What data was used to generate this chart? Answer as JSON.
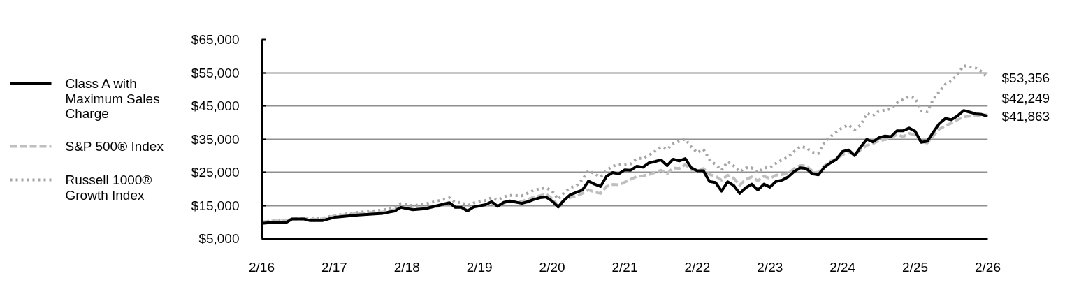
{
  "chart_data": {
    "type": "line",
    "x": [
      "2016-02",
      "2016-04",
      "2016-06",
      "2016-07",
      "2016-09",
      "2016-10",
      "2016-12",
      "2017-02",
      "2017-03",
      "2017-06",
      "2017-10",
      "2017-12",
      "2018-01",
      "2018-03",
      "2018-05",
      "2018-07",
      "2018-09",
      "2018-10",
      "2018-11",
      "2018-12",
      "2019-01",
      "2019-03",
      "2019-04",
      "2019-05",
      "2019-06",
      "2019-07",
      "2019-09",
      "2019-10",
      "2019-11",
      "2019-12",
      "2020-01",
      "2020-02",
      "2020-03",
      "2020-04",
      "2020-05",
      "2020-06",
      "2020-07",
      "2020-08",
      "2020-09",
      "2020-10",
      "2020-11",
      "2020-12",
      "2021-01",
      "2021-02",
      "2021-03",
      "2021-04",
      "2021-05",
      "2021-06",
      "2021-07",
      "2021-08",
      "2021-09",
      "2021-10",
      "2021-11",
      "2021-12",
      "2022-01",
      "2022-02",
      "2022-03",
      "2022-04",
      "2022-05",
      "2022-06",
      "2022-07",
      "2022-08",
      "2022-09",
      "2022-10",
      "2022-11",
      "2022-12",
      "2023-01",
      "2023-02",
      "2023-03",
      "2023-04",
      "2023-05",
      "2023-06",
      "2023-07",
      "2023-08",
      "2023-09",
      "2023-10",
      "2023-11",
      "2023-12",
      "2024-01",
      "2024-02",
      "2024-03",
      "2024-04",
      "2024-05",
      "2024-06",
      "2024-07",
      "2024-08",
      "2024-09",
      "2024-10",
      "2024-11",
      "2024-12",
      "2025-01",
      "2025-02",
      "2025-03",
      "2025-04",
      "2025-05",
      "2025-06",
      "2025-07",
      "2025-08",
      "2025-09",
      "2025-10",
      "2025-11",
      "2025-12",
      "2026-01",
      "2026-02"
    ],
    "series": [
      {
        "name": "Class A with Maximum Sales Charge",
        "color": "#000000",
        "line_style": "solid",
        "values": [
          9600,
          9900,
          9800,
          10900,
          10900,
          10400,
          10400,
          11400,
          11600,
          12100,
          12600,
          13300,
          14400,
          13700,
          14000,
          14900,
          15800,
          14400,
          14400,
          13300,
          14500,
          15200,
          16100,
          14700,
          15900,
          16300,
          15600,
          16100,
          16800,
          17300,
          17500,
          16300,
          14500,
          16600,
          18200,
          18900,
          19600,
          22300,
          21400,
          20700,
          23800,
          24900,
          24500,
          25700,
          25600,
          26800,
          26500,
          27800,
          28200,
          28700,
          27000,
          28900,
          28400,
          29100,
          26300,
          25400,
          25400,
          22200,
          21900,
          19300,
          22100,
          21000,
          18600,
          20300,
          21400,
          19600,
          21400,
          20500,
          22200,
          22600,
          23600,
          25200,
          26300,
          26100,
          24500,
          24200,
          26500,
          27800,
          28900,
          31200,
          31700,
          30000,
          32600,
          34900,
          34100,
          35400,
          35900,
          35700,
          37500,
          37500,
          38300,
          37300,
          34000,
          34300,
          37100,
          39700,
          41200,
          40800,
          42000,
          43600,
          43100,
          42600,
          42400,
          41863
        ],
        "value_labels": [
          null,
          null,
          null,
          null,
          null,
          null,
          null,
          null,
          null,
          null,
          null,
          null,
          null,
          null,
          null,
          null,
          null,
          null,
          null,
          null,
          null,
          null,
          null,
          null,
          null,
          null,
          null,
          null,
          null,
          null,
          null,
          null,
          null,
          null,
          null,
          null,
          null,
          null,
          null,
          null,
          null,
          null,
          null,
          null,
          null,
          null,
          null,
          null,
          null,
          null,
          null,
          null,
          null,
          null,
          null,
          null,
          null,
          null,
          null,
          null,
          null,
          null,
          null,
          null,
          null,
          null,
          null,
          null,
          null,
          null,
          null,
          null,
          null,
          null,
          null,
          null,
          null,
          null,
          null,
          null,
          null,
          null,
          null,
          null,
          null,
          null,
          null,
          null,
          null,
          null,
          null,
          null,
          null,
          null,
          null,
          null,
          null,
          null,
          null,
          null,
          null,
          null,
          null,
          "$41,863"
        ]
      },
      {
        "name": "S&P 500® Index",
        "color": "#bfbfbf",
        "line_style": "dashed",
        "values": [
          10000,
          10300,
          10400,
          10900,
          11000,
          10800,
          10900,
          11800,
          12000,
          12600,
          13000,
          13700,
          14500,
          13900,
          14100,
          14700,
          15400,
          14400,
          14600,
          13400,
          14400,
          15000,
          15600,
          14700,
          15700,
          16100,
          16200,
          16800,
          17500,
          17900,
          18400,
          17000,
          14900,
          16700,
          17400,
          17700,
          18600,
          19700,
          19000,
          18600,
          20700,
          21300,
          21200,
          22000,
          22900,
          23700,
          23900,
          24300,
          24900,
          25600,
          24500,
          26300,
          26100,
          27300,
          25800,
          25300,
          26100,
          24300,
          23800,
          22600,
          24100,
          23200,
          21100,
          22800,
          23600,
          22400,
          23800,
          23100,
          24100,
          24300,
          24600,
          26100,
          27000,
          26900,
          25300,
          24800,
          26900,
          28300,
          29000,
          30300,
          31000,
          30200,
          31800,
          33100,
          33600,
          34500,
          34800,
          35300,
          36400,
          35700,
          36700,
          36200,
          34100,
          33800,
          36000,
          38000,
          39000,
          39800,
          40800,
          41700,
          41900,
          42000,
          42200,
          42249
        ],
        "value_labels": [
          null,
          null,
          null,
          null,
          null,
          null,
          null,
          null,
          null,
          null,
          null,
          null,
          null,
          null,
          null,
          null,
          null,
          null,
          null,
          null,
          null,
          null,
          null,
          null,
          null,
          null,
          null,
          null,
          null,
          null,
          null,
          null,
          null,
          null,
          null,
          null,
          null,
          null,
          null,
          null,
          null,
          null,
          null,
          null,
          null,
          null,
          null,
          null,
          null,
          null,
          null,
          null,
          null,
          null,
          null,
          null,
          null,
          null,
          null,
          null,
          null,
          null,
          null,
          null,
          null,
          null,
          null,
          null,
          null,
          null,
          null,
          null,
          null,
          null,
          null,
          null,
          null,
          null,
          null,
          null,
          null,
          null,
          null,
          null,
          null,
          null,
          null,
          null,
          null,
          null,
          null,
          null,
          null,
          null,
          null,
          null,
          null,
          null,
          null,
          null,
          null,
          null,
          null,
          "$42,249"
        ]
      },
      {
        "name": "Russell 1000® Growth Index",
        "color": "#a6a6a6",
        "line_style": "dotted",
        "values": [
          10000,
          10300,
          10500,
          10900,
          11100,
          10900,
          11100,
          12000,
          12200,
          12900,
          13600,
          14300,
          15500,
          14900,
          15400,
          16300,
          17300,
          15800,
          15900,
          14900,
          15700,
          16500,
          17300,
          16600,
          17600,
          18000,
          17900,
          18700,
          19600,
          20000,
          20300,
          19300,
          16800,
          18900,
          20300,
          20900,
          22800,
          25500,
          24500,
          23500,
          25600,
          26800,
          27300,
          27300,
          27500,
          29100,
          29200,
          30100,
          31300,
          32600,
          31900,
          33600,
          34300,
          35000,
          32600,
          30900,
          31900,
          28800,
          27300,
          25600,
          28200,
          26900,
          25100,
          26300,
          26300,
          24900,
          26300,
          26400,
          27700,
          28700,
          29600,
          31200,
          32700,
          32400,
          31000,
          30600,
          34000,
          35700,
          37100,
          38500,
          39200,
          37800,
          39200,
          42700,
          42000,
          43400,
          43700,
          44100,
          45900,
          46900,
          47800,
          47300,
          43500,
          43200,
          47000,
          49300,
          51500,
          52500,
          54500,
          57100,
          56700,
          56400,
          55300,
          53356
        ],
        "value_labels": [
          null,
          null,
          null,
          null,
          null,
          null,
          null,
          null,
          null,
          null,
          null,
          null,
          null,
          null,
          null,
          null,
          null,
          null,
          null,
          null,
          null,
          null,
          null,
          null,
          null,
          null,
          null,
          null,
          null,
          null,
          null,
          null,
          null,
          null,
          null,
          null,
          null,
          null,
          null,
          null,
          null,
          null,
          null,
          null,
          null,
          null,
          null,
          null,
          null,
          null,
          null,
          null,
          null,
          null,
          null,
          null,
          null,
          null,
          null,
          null,
          null,
          null,
          null,
          null,
          null,
          null,
          null,
          null,
          null,
          null,
          null,
          null,
          null,
          null,
          null,
          null,
          null,
          null,
          null,
          null,
          null,
          null,
          null,
          null,
          null,
          null,
          null,
          null,
          null,
          null,
          null,
          null,
          null,
          null,
          null,
          null,
          null,
          null,
          null,
          null,
          null,
          null,
          null,
          "$53,356"
        ]
      }
    ],
    "xlim": [
      "2016-02",
      "2026-02"
    ],
    "xticks": [
      {
        "value": "2016-02",
        "label": "2/16"
      },
      {
        "value": "2017-02",
        "label": "2/17"
      },
      {
        "value": "2018-02",
        "label": "2/18"
      },
      {
        "value": "2019-02",
        "label": "2/19"
      },
      {
        "value": "2020-02",
        "label": "2/20"
      },
      {
        "value": "2021-02",
        "label": "2/21"
      },
      {
        "value": "2022-02",
        "label": "2/22"
      },
      {
        "value": "2023-02",
        "label": "2/23"
      },
      {
        "value": "2024-02",
        "label": "2/24"
      },
      {
        "value": "2025-02",
        "label": "2/25"
      },
      {
        "value": "2026-02",
        "label": "2/26"
      }
    ],
    "ylim": [
      5000,
      65000
    ],
    "yticks": [
      {
        "value": 5000,
        "label": "$5,000"
      },
      {
        "value": 15000,
        "label": "$15,000"
      },
      {
        "value": 25000,
        "label": "$25,000"
      },
      {
        "value": 35000,
        "label": "$35,000"
      },
      {
        "value": 45000,
        "label": "$45,000"
      },
      {
        "value": 55000,
        "label": "$55,000"
      },
      {
        "value": 65000,
        "label": "$65,000"
      }
    ],
    "grid": "y",
    "legend": "left"
  }
}
